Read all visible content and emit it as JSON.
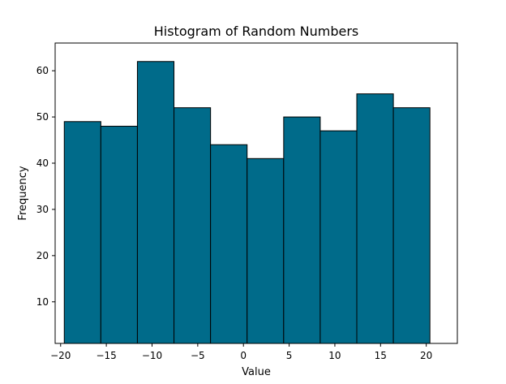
{
  "chart_data": {
    "type": "bar",
    "title": "Histogram of Random Numbers",
    "xlabel": "Value",
    "ylabel": "Frequency",
    "bins": [
      {
        "start": -19.6,
        "end": -15.6,
        "count": 49
      },
      {
        "start": -15.6,
        "end": -11.6,
        "count": 48
      },
      {
        "start": -11.6,
        "end": -7.6,
        "count": 62
      },
      {
        "start": -7.6,
        "end": -3.6,
        "count": 52
      },
      {
        "start": -3.6,
        "end": 0.4,
        "count": 44
      },
      {
        "start": 0.4,
        "end": 4.4,
        "count": 41
      },
      {
        "start": 4.4,
        "end": 8.4,
        "count": 50
      },
      {
        "start": 8.4,
        "end": 12.4,
        "count": 47
      },
      {
        "start": 12.4,
        "end": 16.4,
        "count": 55
      },
      {
        "start": 16.4,
        "end": 20.4,
        "count": 52
      }
    ],
    "xlim": [
      -20.6,
      23.4
    ],
    "ylim": [
      1,
      66
    ],
    "xticks": [
      -20,
      -15,
      -10,
      -5,
      0,
      5,
      10,
      15,
      20
    ],
    "yticks": [
      10,
      20,
      30,
      40,
      50,
      60
    ],
    "bar_color": "#006b8a",
    "edge_color": "#000000",
    "grid": false,
    "legend": null
  }
}
